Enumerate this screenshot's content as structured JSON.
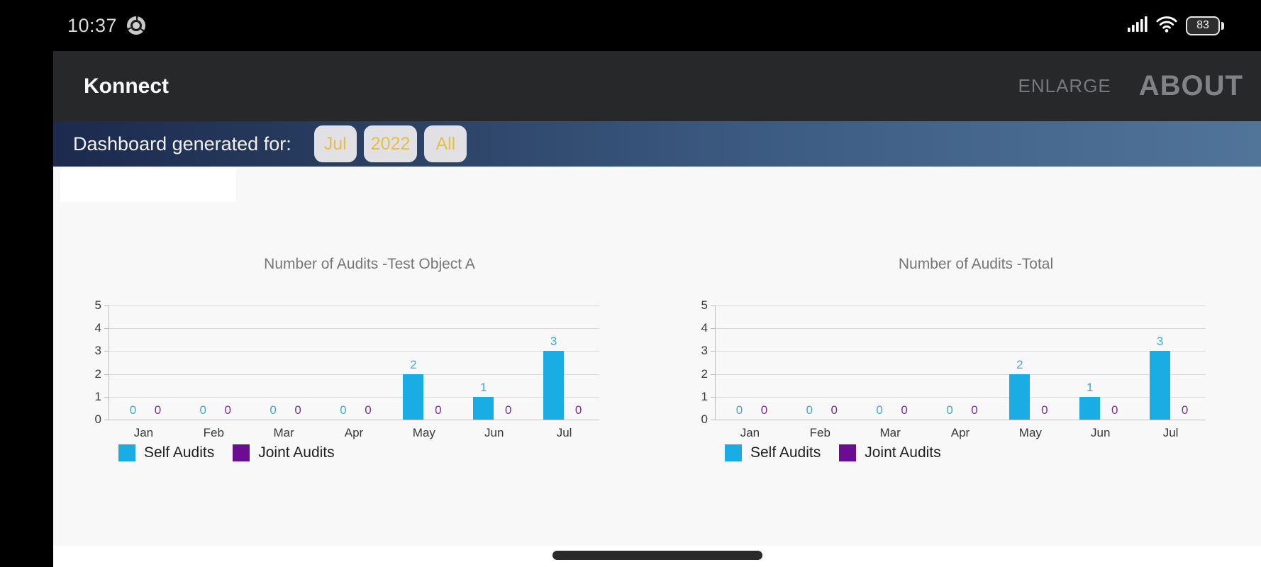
{
  "status_bar": {
    "time": "10:37",
    "battery_level": "83",
    "icons": [
      "chrome-icon",
      "cellular-signal-icon",
      "wifi-icon",
      "battery-icon"
    ]
  },
  "header": {
    "app_title": "Konnect",
    "menu_items": [
      {
        "label": "ENLARGE",
        "name": "enlarge"
      },
      {
        "label": "ABOUT",
        "name": "about"
      }
    ]
  },
  "filter_bar": {
    "label": "Dashboard generated for:",
    "filters": [
      {
        "label": "Jul",
        "name": "month-filter"
      },
      {
        "label": "2022",
        "name": "year-filter"
      },
      {
        "label": "All",
        "name": "scope-filter"
      }
    ]
  },
  "chart_data": [
    {
      "type": "bar",
      "title": "Number of Audits -Test Object A",
      "categories": [
        "Jan",
        "Feb",
        "Mar",
        "Apr",
        "May",
        "Jun",
        "Jul"
      ],
      "series": [
        {
          "name": "Self Audits",
          "color": "#1aade4",
          "label_color": "#3dabd3",
          "values": [
            0,
            0,
            0,
            0,
            2,
            1,
            3
          ]
        },
        {
          "name": "Joint Audits",
          "color": "#6a0d90",
          "label_color": "#7c2f93",
          "values": [
            0,
            0,
            0,
            0,
            0,
            0,
            0
          ]
        }
      ],
      "ylim": [
        0,
        5
      ],
      "yticks": [
        0,
        1,
        2,
        3,
        4,
        5
      ],
      "grid": true,
      "value_labels": true,
      "legend_position": "bottom"
    },
    {
      "type": "bar",
      "title": "Number of Audits -Total",
      "categories": [
        "Jan",
        "Feb",
        "Mar",
        "Apr",
        "May",
        "Jun",
        "Jul"
      ],
      "series": [
        {
          "name": "Self Audits",
          "color": "#1aade4",
          "label_color": "#3dabd3",
          "values": [
            0,
            0,
            0,
            0,
            2,
            1,
            3
          ]
        },
        {
          "name": "Joint Audits",
          "color": "#6a0d90",
          "label_color": "#7c2f93",
          "values": [
            0,
            0,
            0,
            0,
            0,
            0,
            0
          ]
        }
      ],
      "ylim": [
        0,
        5
      ],
      "yticks": [
        0,
        1,
        2,
        3,
        4,
        5
      ],
      "grid": true,
      "value_labels": true,
      "legend_position": "bottom"
    }
  ],
  "colors": {
    "header_bg": "#262829",
    "filter_bar_gradient_start": "#1b2a4e",
    "filter_bar_gradient_end": "#517499",
    "filter_button_bg": "#e1e1e5",
    "filter_button_text": "#e6bf4b",
    "self_audits": "#1aade4",
    "joint_audits": "#6a0d90",
    "content_bg": "#f8f8f8"
  }
}
